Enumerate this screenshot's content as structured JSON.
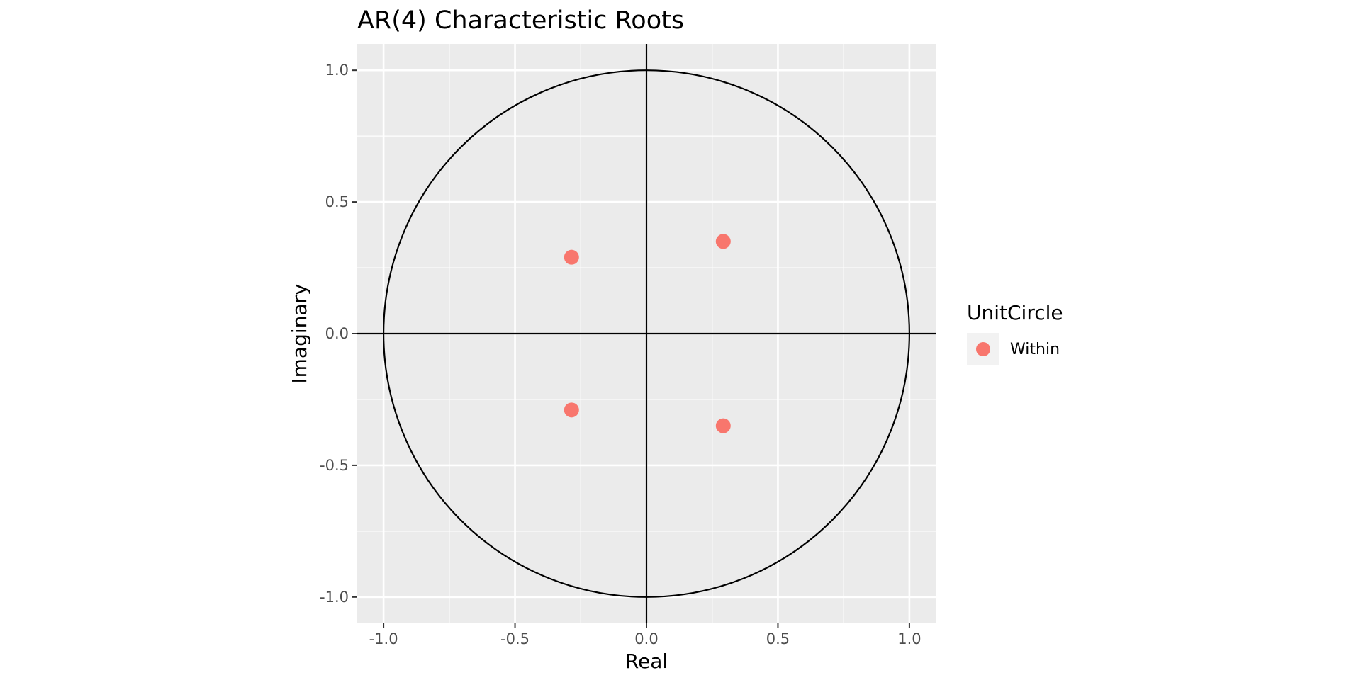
{
  "chart_data": {
    "type": "scatter",
    "title": "AR(4) Characteristic Roots",
    "xlabel": "Real",
    "ylabel": "Imaginary",
    "xlim": [
      -1.1,
      1.1
    ],
    "ylim": [
      -1.1,
      1.1
    ],
    "x_ticks": [
      -1.0,
      -0.5,
      0.0,
      0.5,
      1.0
    ],
    "y_ticks": [
      -1.0,
      -0.5,
      0.0,
      0.5,
      1.0
    ],
    "x_tick_labels": [
      "-1.0",
      "-0.5",
      "0.0",
      "0.5",
      "1.0"
    ],
    "y_tick_labels": [
      "-1.0",
      "-0.5",
      "0.0",
      "0.5",
      "1.0"
    ],
    "grid": true,
    "reference_circle_radius": 1.0,
    "reference_lines": {
      "x": 0.0,
      "y": 0.0
    },
    "legend": {
      "title": "UnitCircle",
      "placement": "right",
      "entries": [
        {
          "label": "Within",
          "color": "#F8766D"
        }
      ]
    },
    "series": [
      {
        "name": "Within",
        "color": "#F8766D",
        "points": [
          {
            "x": -0.285,
            "y": 0.29
          },
          {
            "x": -0.285,
            "y": -0.29
          },
          {
            "x": 0.292,
            "y": 0.35
          },
          {
            "x": 0.292,
            "y": -0.35
          }
        ]
      }
    ]
  },
  "colors": {
    "panel_background": "#EBEBEB",
    "grid_major": "#FFFFFF",
    "point": "#F8766D",
    "reference": "#000000"
  }
}
